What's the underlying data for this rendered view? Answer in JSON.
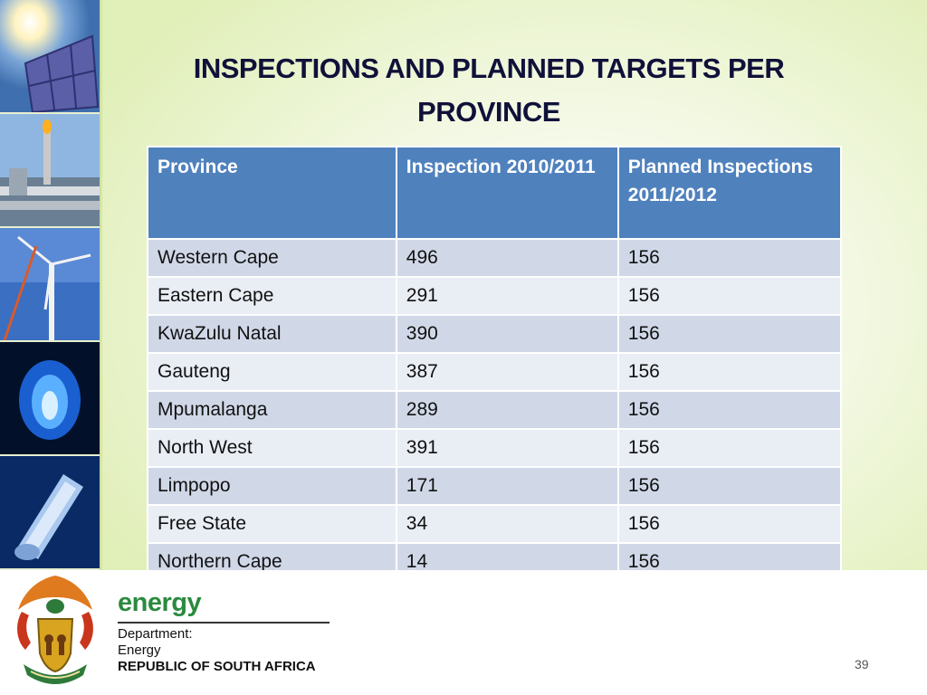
{
  "slide": {
    "title": "INSPECTIONS AND PLANNED TARGETS PER PROVINCE",
    "page_number": "39"
  },
  "table": {
    "headers": [
      "Province",
      "Inspection 2010/2011",
      "Planned Inspections 2011/2012"
    ],
    "rows": [
      [
        "Western Cape",
        "496",
        "156"
      ],
      [
        "Eastern Cape",
        "291",
        "156"
      ],
      [
        "KwaZulu Natal",
        "390",
        "156"
      ],
      [
        "Gauteng",
        "387",
        "156"
      ],
      [
        "Mpumalanga",
        "289",
        "156"
      ],
      [
        "North West",
        "391",
        "156"
      ],
      [
        "Limpopo",
        "171",
        "156"
      ],
      [
        "Free State",
        "34",
        "156"
      ],
      [
        "Northern Cape",
        "14",
        "156"
      ]
    ]
  },
  "footer": {
    "brand": "energy",
    "line1": "Department:",
    "line2": "Energy",
    "line3": "REPUBLIC OF SOUTH AFRICA"
  },
  "colors": {
    "header_blue": "#4f81bd",
    "row_odd": "#d0d8e8",
    "row_even": "#e9edf4",
    "title": "#10113a",
    "brand_green": "#2b8a3e"
  },
  "icons": [
    "solar-panel-photo",
    "refinery-photo",
    "wind-turbine-photo",
    "gas-flame-photo",
    "fuel-rod-photo",
    "coat-of-arms-icon"
  ]
}
